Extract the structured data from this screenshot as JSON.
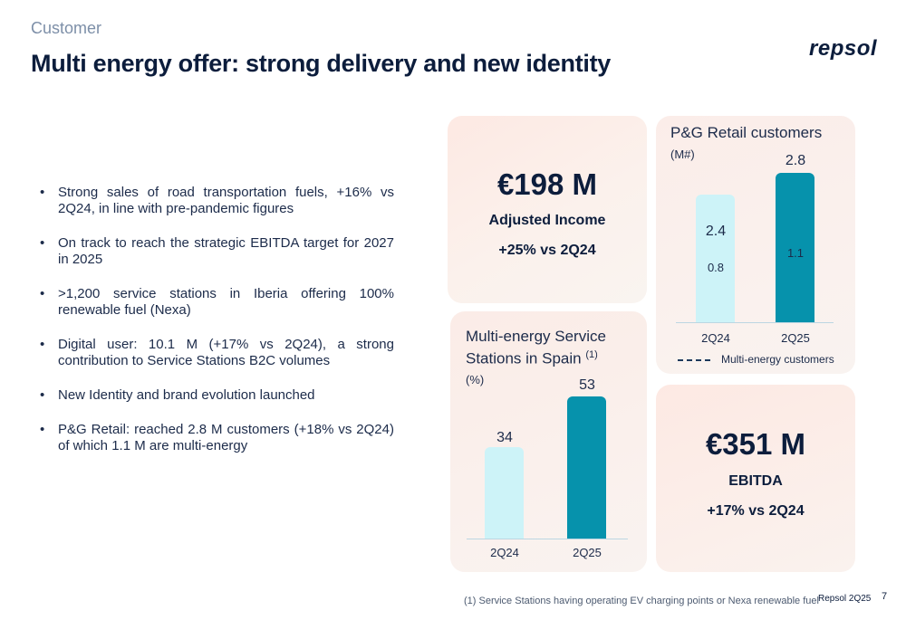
{
  "header": {
    "section": "Customer",
    "title": "Multi energy offer: strong delivery and new identity",
    "logo": "repsol"
  },
  "bullets": [
    "Strong sales of road transportation fuels, +16% vs 2Q24, in line with pre-pandemic figures",
    "On track to reach the strategic EBITDA target for 2027 in 2025",
    ">1,200 service stations in Iberia offering 100% renewable fuel (Nexa)",
    "Digital user: 10.1 M (+17% vs 2Q24), a strong contribution to Service Stations B2C volumes",
    "New Identity and brand evolution launched",
    "P&G Retail: reached 2.8 M customers (+18% vs 2Q24) of which 1.1 M are multi-energy"
  ],
  "bullet_symbol": "•",
  "income_card": {
    "value": "€198 M",
    "label": "Adjusted Income",
    "change": "+25% vs 2Q24"
  },
  "ebitda_card": {
    "value": "€351 M",
    "label": "EBITDA",
    "change": "+17% vs 2Q24"
  },
  "retail_chart": {
    "title": "P&G Retail customers",
    "unit": "(M#)",
    "legend": "Multi-energy customers",
    "categories": [
      "2Q24",
      "2Q25"
    ],
    "value_labels": [
      "2.4",
      "2.8"
    ],
    "multi_labels": [
      "0.8",
      "1.1"
    ]
  },
  "stations_chart": {
    "title": "Multi-energy Service Stations in Spain",
    "footnote_ref": "(1)",
    "unit": "(%)",
    "categories": [
      "2Q24",
      "2Q25"
    ],
    "value_labels": [
      "34",
      "53"
    ]
  },
  "colors": {
    "light_bar": "#cdf3f8",
    "dark_bar": "#0692ac",
    "navy": "#0c1d3c"
  },
  "chart_data": [
    {
      "type": "bar",
      "title": "P&G Retail customers",
      "ylabel": "(M#)",
      "categories": [
        "2Q24",
        "2Q25"
      ],
      "series": [
        {
          "name": "P&G Retail customers",
          "values": [
            2.4,
            2.8
          ]
        },
        {
          "name": "Multi-energy customers",
          "values": [
            0.8,
            1.1
          ]
        }
      ]
    },
    {
      "type": "bar",
      "title": "Multi-energy Service Stations in Spain (1)",
      "ylabel": "(%)",
      "categories": [
        "2Q24",
        "2Q25"
      ],
      "values": [
        34,
        53
      ]
    }
  ],
  "footer": {
    "footnote": "(1) Service Stations having operating EV charging points or Nexa renewable fuel",
    "brand": "Repsol 2Q25",
    "page": "7"
  }
}
